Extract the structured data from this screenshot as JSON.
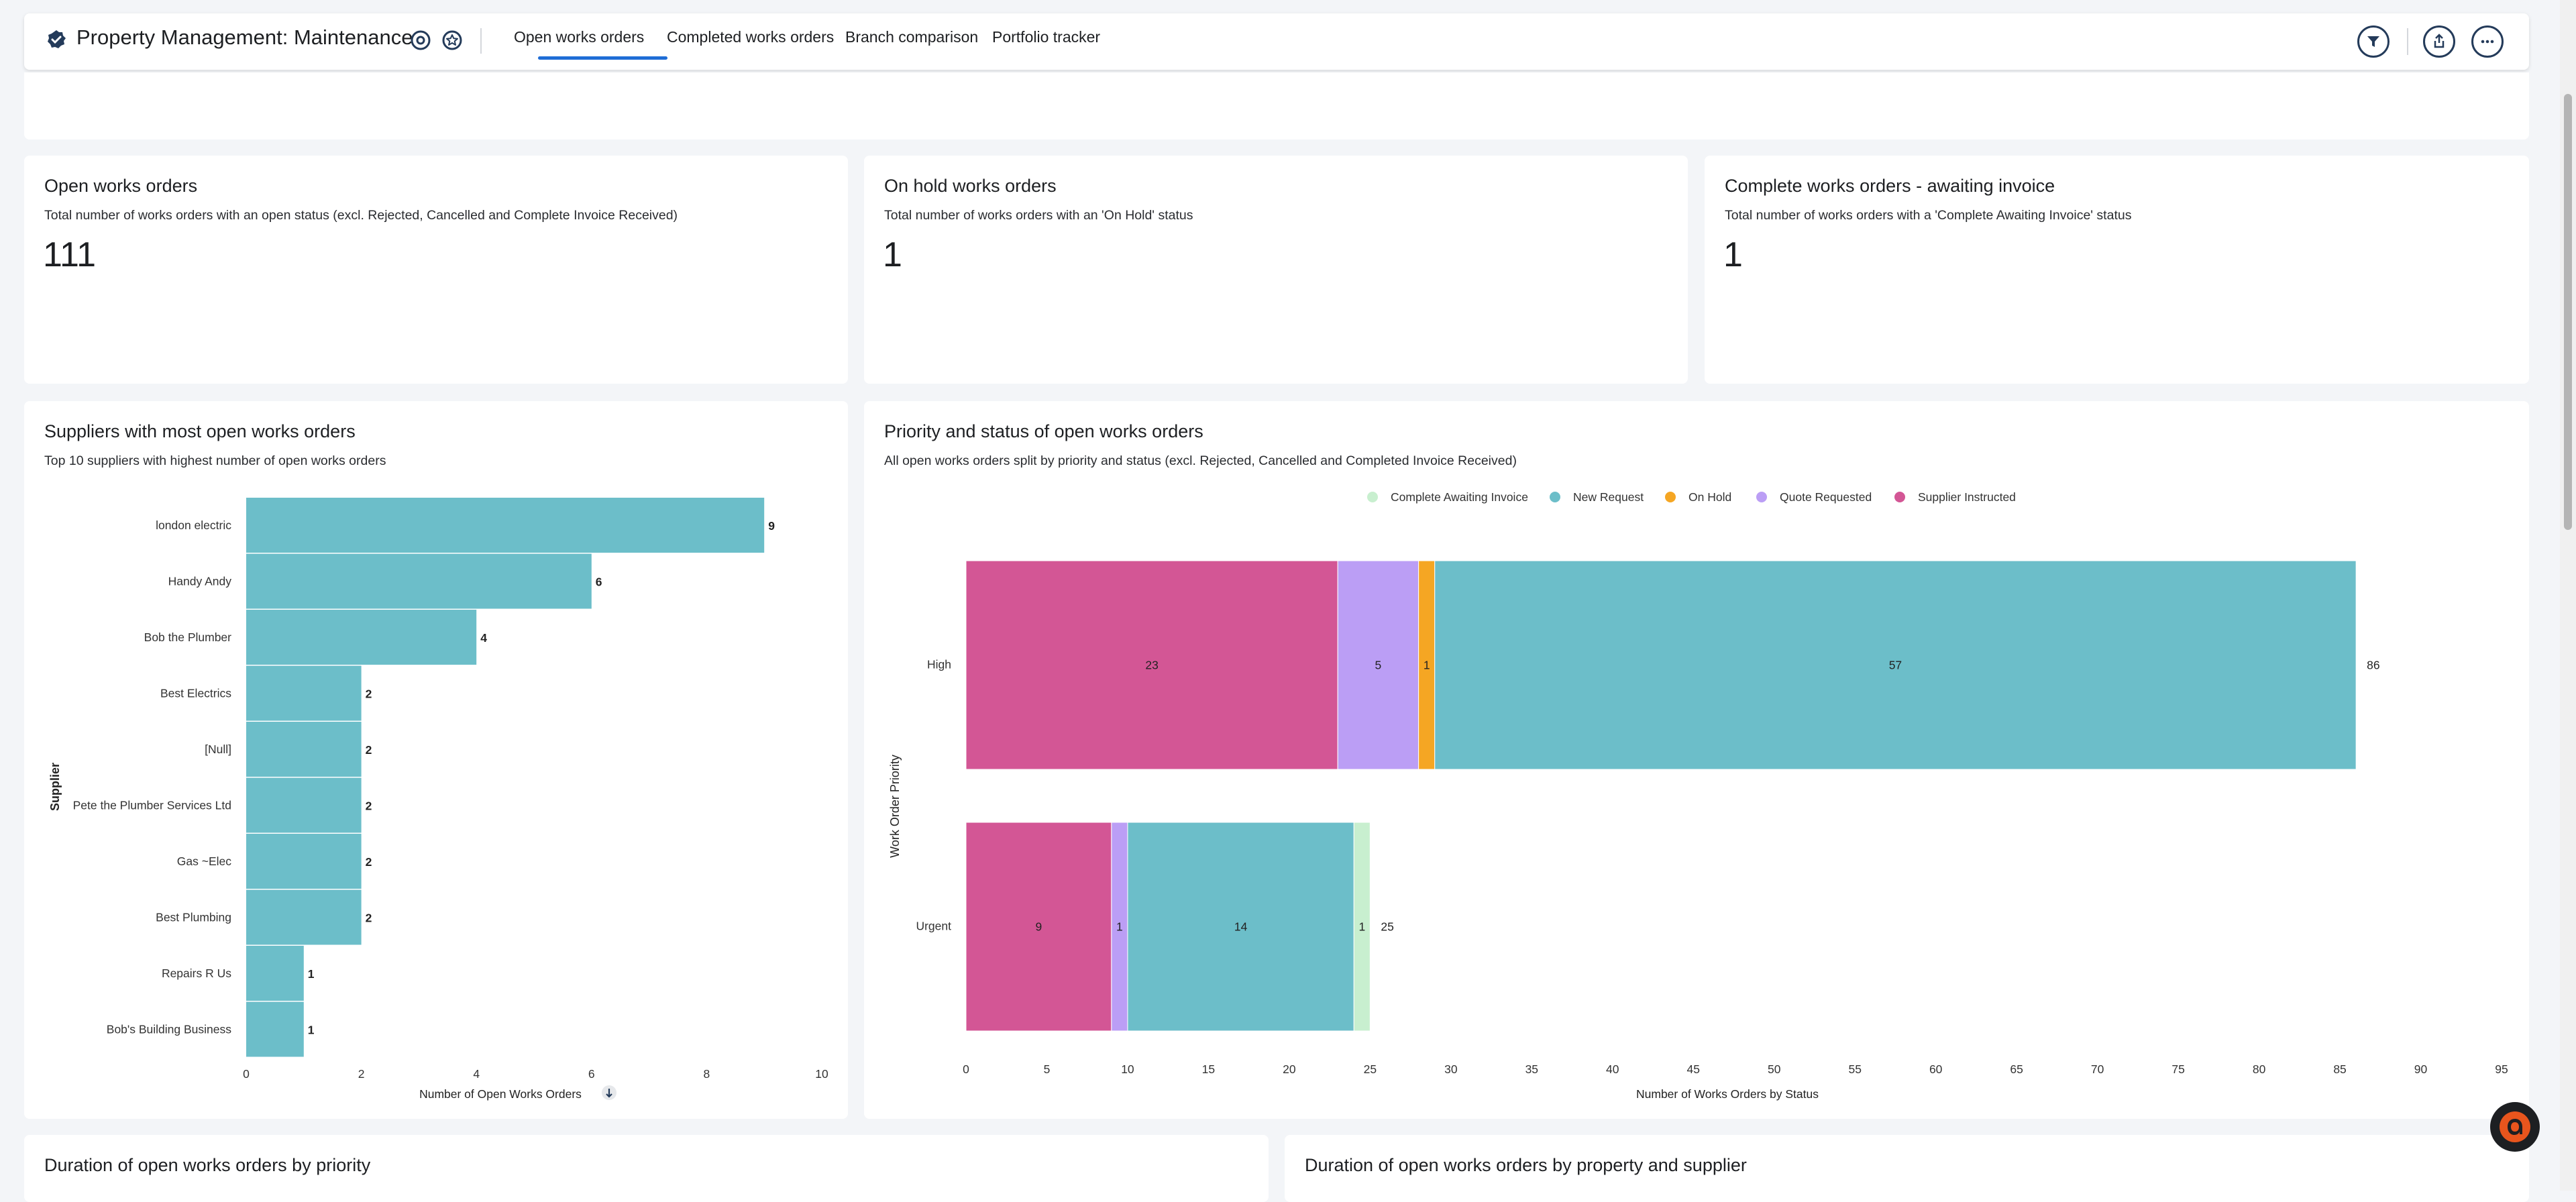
{
  "header": {
    "title": "Property Management: Maintenance",
    "tabs": [
      {
        "label": "Open works orders",
        "active": true
      },
      {
        "label": "Completed works orders",
        "active": false
      },
      {
        "label": "Branch comparison",
        "active": false
      },
      {
        "label": "Portfolio tracker",
        "active": false
      }
    ]
  },
  "kpis": [
    {
      "title": "Open works orders",
      "subtitle": "Total number of works orders with an open status (excl. Rejected, Cancelled and Complete Invoice Received)",
      "value": "111"
    },
    {
      "title": "On hold works orders",
      "subtitle": "Total number of works orders with an 'On Hold' status",
      "value": "1"
    },
    {
      "title": "Complete works orders - awaiting invoice",
      "subtitle": "Total number of works orders with a 'Complete Awaiting Invoice' status",
      "value": "1"
    }
  ],
  "suppliers_panel": {
    "title": "Suppliers with most open works orders",
    "subtitle": "Top 10 suppliers with highest number of open works orders"
  },
  "priority_panel": {
    "title": "Priority and status of open works orders",
    "subtitle": "All open works orders split by priority and status (excl. Rejected, Cancelled and Completed Invoice Received)"
  },
  "bottom_panels": [
    {
      "title": "Duration of open works orders by priority"
    },
    {
      "title": "Duration of open works orders by property and supplier"
    }
  ],
  "chart_data": [
    {
      "type": "bar",
      "orientation": "horizontal",
      "categories": [
        "london electric",
        "Handy Andy",
        "Bob the Plumber",
        "Best Electrics",
        "[Null]",
        "Pete the Plumber Services Ltd",
        "Gas ~Elec",
        "Best Plumbing",
        "Repairs R Us",
        "Bob's Building Business"
      ],
      "values": [
        9,
        6,
        4,
        2,
        2,
        2,
        2,
        2,
        1,
        1
      ],
      "xlabel": "Number of Open Works Orders",
      "ylabel": "Supplier",
      "xlim": [
        0,
        10
      ],
      "xticks": [
        0,
        2,
        4,
        6,
        8,
        10
      ],
      "color": "#6cbec9"
    },
    {
      "type": "bar",
      "orientation": "horizontal",
      "stacked": true,
      "categories": [
        "High",
        "Urgent"
      ],
      "xlabel": "Number of Works Orders by Status",
      "ylabel": "Work Order Priority",
      "xlim": [
        0,
        95
      ],
      "xticks": [
        0,
        5,
        10,
        15,
        20,
        25,
        30,
        35,
        40,
        45,
        50,
        55,
        60,
        65,
        70,
        75,
        80,
        85,
        90,
        95
      ],
      "legend": [
        "Complete Awaiting Invoice",
        "New Request",
        "On Hold",
        "Quote Requested",
        "Supplier Instructed"
      ],
      "legend_position": "top",
      "legend_colors": {
        "Complete Awaiting Invoice": "#c8efcf",
        "New Request": "#6cbec9",
        "On Hold": "#f5a623",
        "Quote Requested": "#bb9ef5",
        "Supplier Instructed": "#d35695"
      },
      "stacks": [
        {
          "category": "High",
          "total": 86,
          "segments": [
            {
              "series": "Supplier Instructed",
              "value": 23
            },
            {
              "series": "Quote Requested",
              "value": 5
            },
            {
              "series": "On Hold",
              "value": 1
            },
            {
              "series": "New Request",
              "value": 57
            }
          ]
        },
        {
          "category": "Urgent",
          "total": 25,
          "segments": [
            {
              "series": "Supplier Instructed",
              "value": 9
            },
            {
              "series": "Quote Requested",
              "value": 1
            },
            {
              "series": "New Request",
              "value": 14
            },
            {
              "series": "Complete Awaiting Invoice",
              "value": 1
            }
          ]
        }
      ]
    }
  ],
  "colors": {
    "accent": "#1f6dd6",
    "icon_dark": "#243b5a",
    "brand": "#e8551d"
  }
}
